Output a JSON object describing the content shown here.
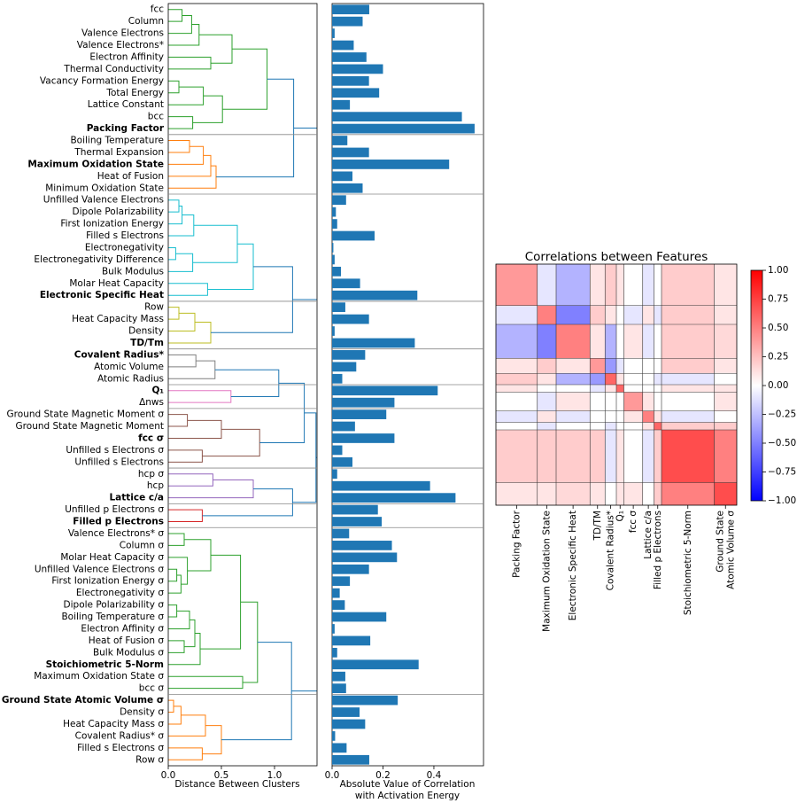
{
  "chart_data": [
    {
      "type": "dendrogram",
      "xlabel": "Distance Between Clusters",
      "xlim": [
        0,
        1.4
      ],
      "xticks": [
        {
          "value": 0,
          "label": "0.0"
        },
        0.5,
        {
          "value": 1,
          "label": "1.0"
        }
      ],
      "link_color": "#1f77b4",
      "labels": [
        "fcc",
        "Column",
        "Valence Electrons",
        "Valence Electrons*",
        "Electron Affinity",
        "Thermal Conductivity",
        "Vacancy Formation Energy",
        "Total Energy",
        "Lattice Constant",
        "bcc",
        "Packing Factor",
        "Boiling Temperature",
        "Thermal Expansion",
        "Maximum Oxidation State",
        "Heat of Fusion",
        "Minimum Oxidation State",
        "Unfilled Valence Electrons",
        "Dipole Polarizability",
        "First Ionization Energy",
        "Filled s Electrons",
        "Electronegativity",
        "Electronegativity Difference",
        "Bulk Modulus",
        "Molar Heat Capacity",
        "Electronic Specific Heat",
        "Row",
        "Heat Capacity Mass",
        "Density",
        "TD/Tm",
        "Covalent Radius*",
        "Atomic Volume",
        "Atomic Radius",
        "Q₁",
        "Δnws",
        "Ground State Magnetic Moment σ",
        "Ground State Magnetic Moment",
        "fcc σ",
        "Unfilled s Electrons σ",
        "Unfilled s Electrons",
        "hcp σ",
        "hcp",
        "Lattice c/a",
        "Unfilled p Electrons σ",
        "Filled p Electrons",
        "Valence Electrons* σ",
        "Column σ",
        "Molar Heat Capacity σ",
        "Unfilled Valence Electrons σ",
        "First Ionization Energy σ",
        "Electronegativity σ",
        "Dipole Polarizability σ",
        "Boiling Temperature σ",
        "Electron Affinity σ",
        "Heat of Fusion σ",
        "Bulk Modulus σ",
        "Stoichiometric 5-Norm",
        "Maximum Oxidation State σ",
        "bcc σ",
        "Ground State Atomic Volume σ",
        "Density σ",
        "Heat Capacity Mass σ",
        "Covalent Radius* σ",
        "Filled s Electrons σ",
        "Row σ"
      ],
      "bold": [
        10,
        13,
        24,
        28,
        29,
        32,
        36,
        41,
        43,
        55,
        58
      ],
      "tree": {
        "h": 1.5,
        "c": [
          {
            "h": 1.45,
            "c": [
              {
                "h": 1.42,
                "c": [
                  {
                    "h": 1.18,
                    "c": [
                      {
                        "color": "#2ca02c",
                        "h": 0.93,
                        "c": [
                          {
                            "h": 0.6,
                            "c": [
                              {
                                "h": 0.29,
                                "c": [
                                  {
                                    "h": 0.22,
                                    "c": [
                                      {
                                        "h": 0.13,
                                        "c": [
                                          0,
                                          1
                                        ]
                                      },
                                      2
                                    ]
                                  },
                                  3
                                ]
                              },
                              {
                                "h": 0.4,
                                "c": [
                                  4,
                                  5
                                ]
                              }
                            ]
                          },
                          {
                            "h": 0.51,
                            "c": [
                              {
                                "h": 0.33,
                                "c": [
                                  {
                                    "h": 0.1,
                                    "c": [
                                      6,
                                      7
                                    ]
                                  },
                                  8
                                ]
                              },
                              {
                                "h": 0.23,
                                "c": [
                                  9,
                                  10
                                ]
                              }
                            ]
                          }
                        ]
                      },
                      {
                        "color": "#ff7f0e",
                        "h": 0.45,
                        "c": [
                          {
                            "h": 0.4,
                            "c": [
                              {
                                "h": 0.33,
                                "c": [
                                  {
                                    "h": 0.2,
                                    "c": [
                                      11,
                                      12
                                    ]
                                  },
                                  13
                                ]
                              },
                              14
                            ]
                          },
                          15
                        ]
                      }
                    ]
                  },
                  {
                    "h": 1.17,
                    "c": [
                      {
                        "color": "#17becf",
                        "h": 0.8,
                        "c": [
                          {
                            "h": 0.65,
                            "c": [
                              {
                                "h": 0.24,
                                "c": [
                                  {
                                    "h": 0.13,
                                    "c": [
                                      {
                                        "h": 0.1,
                                        "c": [
                                          16,
                                          17
                                        ]
                                      },
                                      18
                                    ]
                                  },
                                  19
                                ]
                              },
                              {
                                "h": 0.23,
                                "c": [
                                  {
                                    "h": 0.07,
                                    "c": [
                                      20,
                                      21
                                    ]
                                  },
                                  22
                                ]
                              }
                            ]
                          },
                          {
                            "h": 0.37,
                            "c": [
                              23,
                              24
                            ]
                          }
                        ]
                      },
                      {
                        "color": "#bcbd22",
                        "h": 0.4,
                        "c": [
                          {
                            "h": 0.25,
                            "c": [
                              {
                                "h": 0.1,
                                "c": [
                                  25,
                                  26
                                ]
                              },
                              27
                            ]
                          },
                          28
                        ]
                      }
                    ]
                  }
                ]
              },
              {
                "h": 1.39,
                "c": [
                  {
                    "h": 1.28,
                    "c": [
                      {
                        "h": 1.04,
                        "c": [
                          {
                            "color": "#7f7f7f",
                            "h": 0.44,
                            "c": [
                              {
                                "h": 0.26,
                                "c": [
                                  29,
                                  30
                                ]
                              },
                              31
                            ]
                          },
                          {
                            "color": "#e377c2",
                            "h": 0.59,
                            "c": [
                              32,
                              33
                            ]
                          }
                        ]
                      },
                      {
                        "color": "#8c564b",
                        "h": 0.86,
                        "c": [
                          {
                            "h": 0.5,
                            "c": [
                              {
                                "h": 0.18,
                                "c": [
                                  34,
                                  35
                                ]
                              },
                              36
                            ]
                          },
                          {
                            "h": 0.32,
                            "c": [
                              37,
                              38
                            ]
                          }
                        ]
                      }
                    ]
                  },
                  {
                    "h": 1.17,
                    "c": [
                      {
                        "color": "#9467bd",
                        "h": 0.8,
                        "c": [
                          {
                            "h": 0.42,
                            "c": [
                              39,
                              40
                            ]
                          },
                          41
                        ]
                      },
                      {
                        "color": "#d62728",
                        "h": 0.32,
                        "c": [
                          42,
                          43
                        ]
                      }
                    ]
                  }
                ]
              }
            ]
          },
          {
            "h": 1.16,
            "c": [
              {
                "color": "#2ca02c",
                "h": 0.84,
                "c": [
                  {
                    "h": 0.68,
                    "c": [
                      {
                        "h": 0.4,
                        "c": [
                          {
                            "h": 0.15,
                            "c": [
                              44,
                              45
                            ]
                          },
                          {
                            "h": 0.18,
                            "c": [
                              46,
                              {
                                "h": 0.12,
                                "c": [
                                  {
                                    "h": 0.08,
                                    "c": [
                                      47,
                                      48
                                    ]
                                  },
                                  49
                                ]
                              }
                            ]
                          }
                        ]
                      },
                      {
                        "h": 0.3,
                        "c": [
                          {
                            "h": 0.25,
                            "c": [
                              {
                                "h": 0.2,
                                "c": [
                                  {
                                    "h": 0.08,
                                    "c": [
                                      50,
                                      51
                                    ]
                                  },
                                  52
                                ]
                              },
                              {
                                "h": 0.15,
                                "c": [
                                  53,
                                  54
                                ]
                              }
                            ]
                          },
                          55
                        ]
                      }
                    ]
                  },
                  {
                    "h": 0.7,
                    "c": [
                      56,
                      57
                    ]
                  }
                ]
              },
              {
                "color": "#ff7f0e",
                "h": 0.5,
                "c": [
                  {
                    "h": 0.35,
                    "c": [
                      {
                        "h": 0.12,
                        "c": [
                          {
                            "h": 0.05,
                            "c": [
                              58,
                              59
                            ]
                          },
                          60
                        ]
                      },
                      61
                    ]
                  },
                  {
                    "h": 0.32,
                    "c": [
                      62,
                      63
                    ]
                  }
                ]
              }
            ]
          }
        ]
      }
    },
    {
      "type": "bar",
      "orientation": "horizontal",
      "color": "#1f77b4",
      "xlabel": [
        "Absolute Value of Correlation",
        "with Activation Energy"
      ],
      "xlim": [
        0,
        0.595
      ],
      "xticks": [
        {
          "value": 0,
          "label": "0.0"
        },
        0.2,
        0.4
      ],
      "values": [
        0.146,
        0.12,
        0.01,
        0.085,
        0.135,
        0.2,
        0.145,
        0.185,
        0.07,
        0.51,
        0.56,
        0.06,
        0.145,
        0.46,
        0.08,
        0.12,
        0.055,
        0.015,
        0.02,
        0.167,
        0.005,
        0.01,
        0.035,
        0.11,
        0.335,
        0.052,
        0.145,
        0.01,
        0.325,
        0.13,
        0.095,
        0.04,
        0.415,
        0.245,
        0.213,
        0.09,
        0.245,
        0.04,
        0.08,
        0.02,
        0.385,
        0.485,
        0.18,
        0.195,
        0.067,
        0.235,
        0.255,
        0.145,
        0.07,
        0.03,
        0.05,
        0.213,
        0.01,
        0.15,
        0.02,
        0.34,
        0.052,
        0.055,
        0.258,
        0.108,
        0.13,
        0.012,
        0.057,
        0.146
      ]
    },
    {
      "type": "heatmap",
      "title": "Correlations between Features",
      "clim": [
        -1,
        1
      ],
      "colorbar_ticks": [
        {
          "value": 1,
          "label": "1.00"
        },
        0.75,
        {
          "value": 0.5,
          "label": "0.50"
        },
        0.25,
        {
          "value": 0,
          "label": "0.00"
        },
        {
          "value": -0.25,
          "label": "−0.25"
        },
        {
          "value": -0.5,
          "label": "−0.50"
        },
        {
          "value": -0.75,
          "label": "−0.75"
        },
        {
          "value": -1,
          "label": "−1.00"
        }
      ],
      "xlim": [
        0,
        64
      ],
      "xticks": [
        {
          "value": 5.5,
          "label": "Packing Factor"
        },
        {
          "value": 13.5,
          "label": "Maximum Oxidation State"
        },
        {
          "value": 20.5,
          "label": "Electronic Specific Heat"
        },
        {
          "value": 27,
          "label": "TD/TM"
        },
        {
          "value": 30.5,
          "label": "Covalent Radius*"
        },
        {
          "value": 33,
          "label": "Q₁"
        },
        {
          "value": 36.5,
          "label": "fcc σ"
        },
        {
          "value": 40.5,
          "label": "Lattice c/a"
        },
        {
          "value": 43,
          "label": "Filled p Electrons"
        },
        {
          "value": 51,
          "label": "Stoichiometric 5-Norm"
        },
        {
          "value": 61,
          "label": [
            "Ground State",
            "Atomic Volume σ"
          ]
        }
      ],
      "values": [
        [
          0.4,
          -0.1,
          -0.3,
          0.1,
          0.2,
          0.1,
          0,
          -0.1,
          0,
          0.2,
          0.1
        ],
        [
          -0.1,
          0.5,
          -0.5,
          0.2,
          0.1,
          0,
          -0.1,
          0.1,
          -0.1,
          0.2,
          0.1
        ],
        [
          -0.3,
          -0.5,
          0.5,
          0.1,
          -0.3,
          0,
          0.1,
          -0.1,
          0,
          0.2,
          0.15
        ],
        [
          0.1,
          0.2,
          0.1,
          0.4,
          -0.4,
          -0.1,
          0,
          0,
          0,
          0.2,
          0.1
        ],
        [
          0.2,
          0.1,
          -0.3,
          -0.4,
          0.6,
          0.1,
          0,
          0,
          -0.1,
          -0.1,
          0
        ],
        [
          0.1,
          0,
          0,
          -0.1,
          0.1,
          0.6,
          0,
          0,
          0,
          0.1,
          0.1
        ],
        [
          0,
          -0.1,
          0.1,
          0,
          0,
          0,
          0.4,
          0.1,
          0,
          0,
          0.1
        ],
        [
          -0.1,
          0.1,
          -0.1,
          0,
          0,
          0,
          0.1,
          0.5,
          0.1,
          -0.1,
          0
        ],
        [
          0,
          -0.1,
          0,
          0,
          -0.1,
          0,
          0,
          0.1,
          0.6,
          0.2,
          0.2
        ],
        [
          0.2,
          0.2,
          0.2,
          0.2,
          -0.1,
          0.1,
          0,
          -0.1,
          0.2,
          0.7,
          0.5
        ],
        [
          0.1,
          0.1,
          0.15,
          0.1,
          0,
          0.1,
          0.1,
          0,
          0.2,
          0.5,
          0.7
        ]
      ]
    }
  ]
}
